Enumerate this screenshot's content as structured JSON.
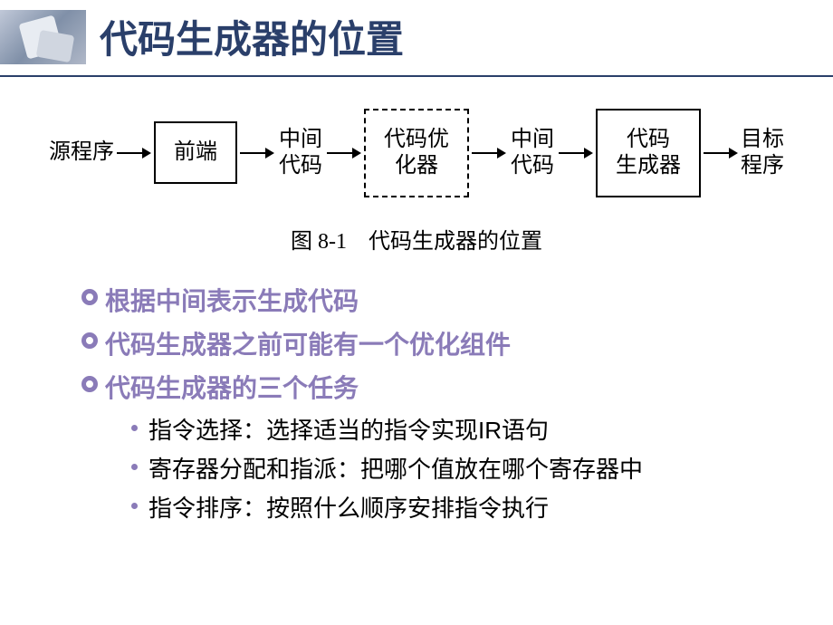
{
  "title": "代码生成器的位置",
  "flowchart": {
    "input_label": "源程序",
    "box1": "前端",
    "arrow1_label_line1": "中间",
    "arrow1_label_line2": "代码",
    "box2_line1": "代码优",
    "box2_line2": "化器",
    "arrow2_label_line1": "中间",
    "arrow2_label_line2": "代码",
    "box3_line1": "代码",
    "box3_line2": "生成器",
    "output_label_line1": "目标",
    "output_label_line2": "程序",
    "caption": "图 8-1　代码生成器的位置"
  },
  "bullets": {
    "b1": "根据中间表示生成代码",
    "b2": "代码生成器之前可能有一个优化组件",
    "b3": "代码生成器的三个任务",
    "sub1": "指令选择：选择适当的指令实现IR语句",
    "sub2": "寄存器分配和指派：把哪个值放在哪个寄存器中",
    "sub3": "指令排序：按照什么顺序安排指令执行"
  },
  "colors": {
    "title_color": "#2a3f6a",
    "bullet_color": "#8a7bb8",
    "text_color": "#000000",
    "background": "#ffffff"
  },
  "fonts": {
    "title_size": 42,
    "flow_size": 24,
    "bullet_size": 28,
    "sub_size": 26
  }
}
